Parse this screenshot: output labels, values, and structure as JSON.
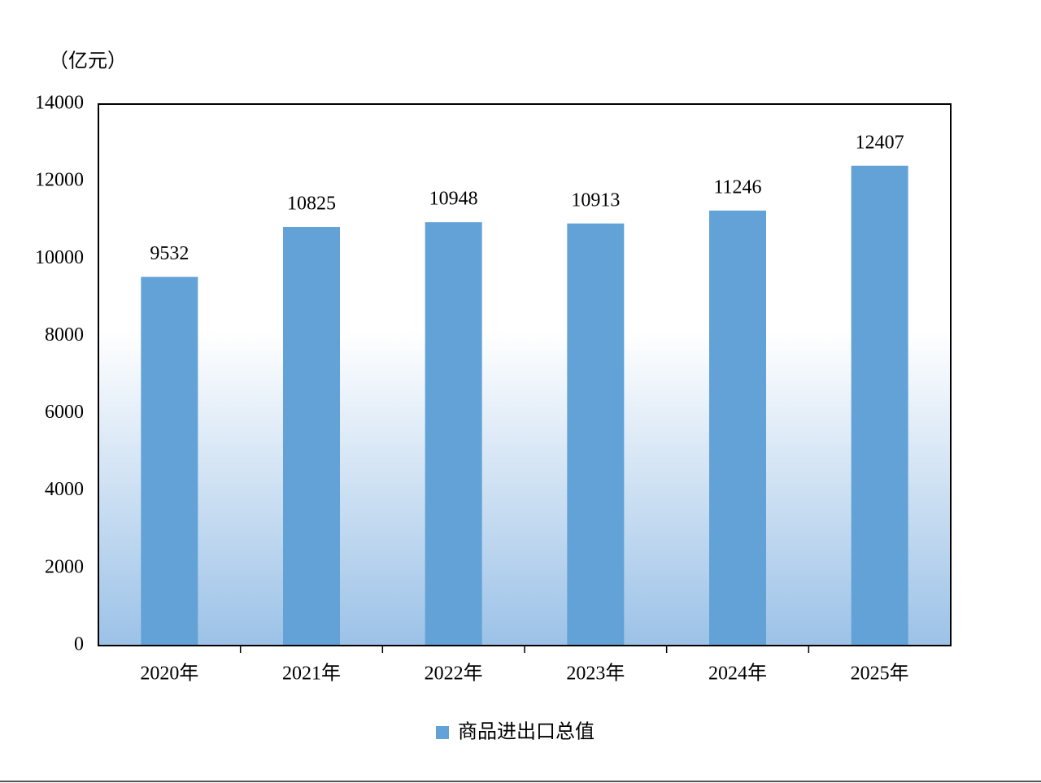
{
  "chart_data": {
    "type": "bar",
    "y_label": "（亿元）",
    "categories": [
      "2020年",
      "2021年",
      "2022年",
      "2023年",
      "2024年",
      "2025年"
    ],
    "series": [
      {
        "name": "商品进出口总值",
        "color": "#63a2d6",
        "values": [
          9532,
          10825,
          10948,
          10913,
          11246,
          12407
        ]
      }
    ],
    "ylim": [
      0,
      14000
    ],
    "yticks": [
      0,
      2000,
      4000,
      6000,
      8000,
      10000,
      12000,
      14000
    ],
    "grid": false,
    "legend": "bottom"
  }
}
